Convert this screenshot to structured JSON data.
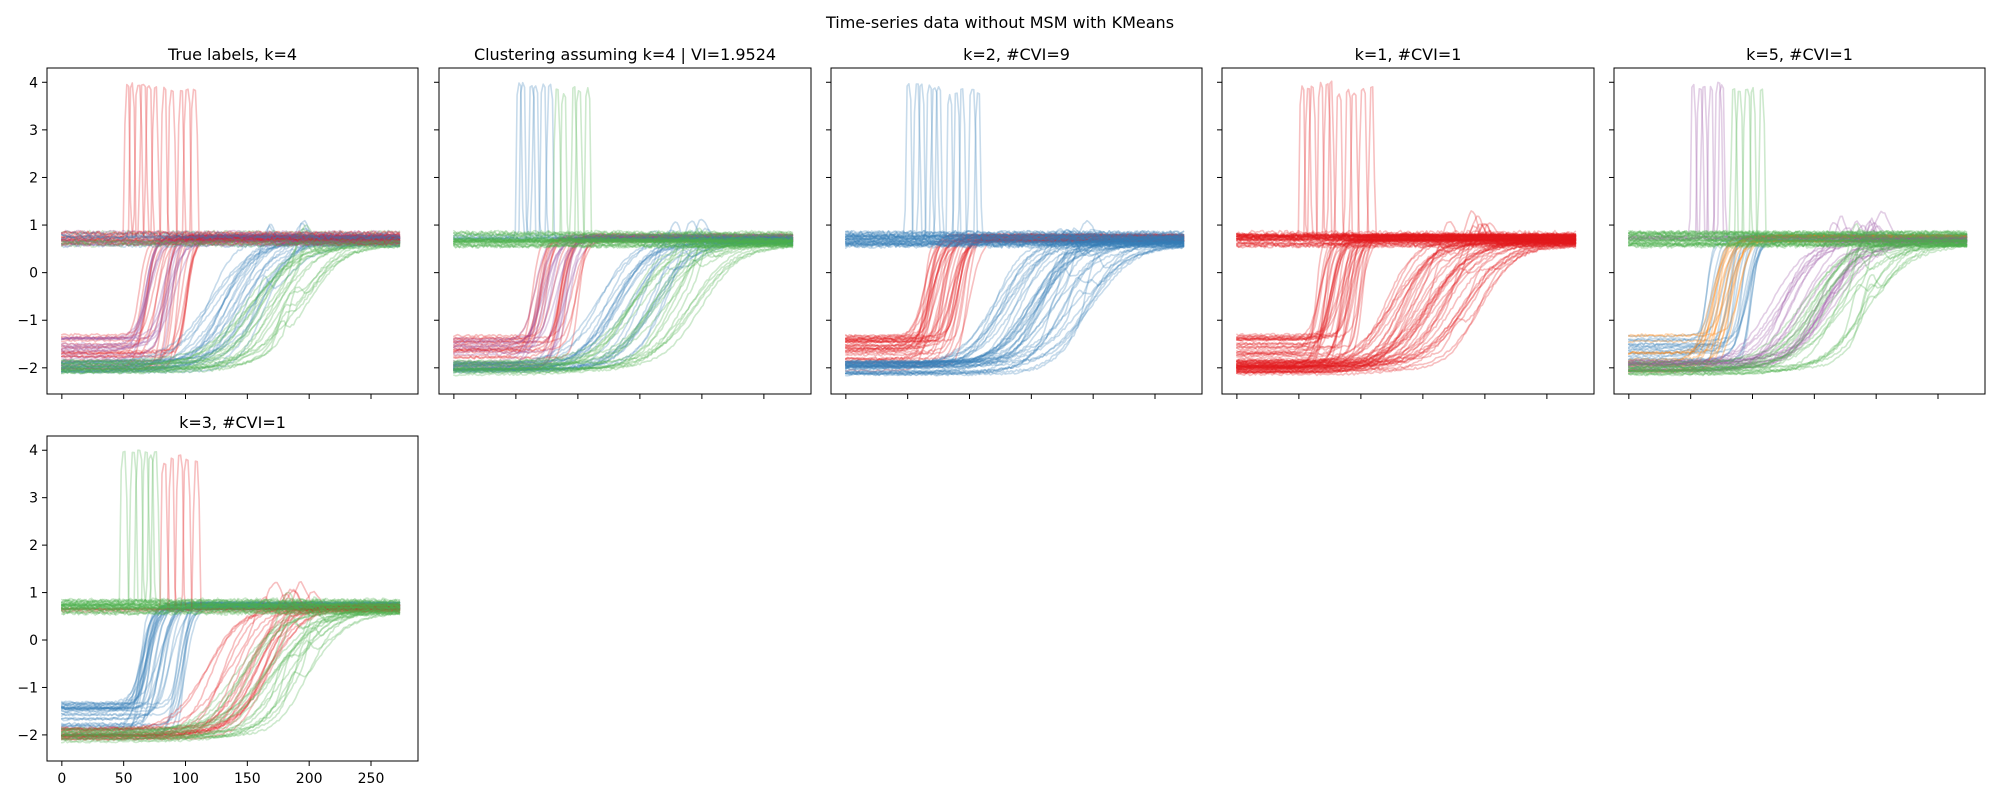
{
  "figure": {
    "suptitle": "Time-series data without MSM with KMeans"
  },
  "palette": {
    "red": "#e41a1c",
    "blue": "#377eb8",
    "green": "#4daf4a",
    "purple": "#984ea3",
    "orange": "#ff7f00"
  },
  "chart_data": [
    {
      "type": "line",
      "title": "True labels, k=4",
      "xlim": [
        -12,
        288
      ],
      "ylim": [
        -2.55,
        4.3
      ],
      "xticks": [
        0,
        50,
        100,
        150,
        200,
        250
      ],
      "yticks": [
        -2,
        -1,
        0,
        1,
        2,
        3,
        4
      ],
      "grid": false,
      "show_xticklabels": false,
      "show_yticklabels": true,
      "families": [
        "red",
        "purple",
        "blue",
        "green"
      ],
      "families_color": [
        "red",
        "purple",
        "blue",
        "green"
      ]
    },
    {
      "type": "line",
      "title": "Clustering assuming k=4 | VI=1.9524",
      "xlim": [
        -12,
        288
      ],
      "ylim": [
        -2.55,
        4.3
      ],
      "xticks": [
        0,
        50,
        100,
        150,
        200,
        250
      ],
      "yticks": [
        -2,
        -1,
        0,
        1,
        2,
        3,
        4
      ],
      "grid": false,
      "show_xticklabels": false,
      "show_yticklabels": false,
      "families": [
        "red",
        "purple",
        "blue",
        "green"
      ],
      "families_color": [
        "red",
        "purple",
        "blue",
        "green"
      ],
      "spike_colors": [
        "blue",
        "green"
      ],
      "flat_color": "green"
    },
    {
      "type": "line",
      "title": "k=2, #CVI=9",
      "xlim": [
        -12,
        288
      ],
      "ylim": [
        -2.55,
        4.3
      ],
      "xticks": [
        0,
        50,
        100,
        150,
        200,
        250
      ],
      "yticks": [
        -2,
        -1,
        0,
        1,
        2,
        3,
        4
      ],
      "grid": false,
      "show_xticklabels": false,
      "show_yticklabels": false,
      "families": [
        "red",
        "red",
        "blue",
        "blue"
      ],
      "families_color": [
        "red",
        "red",
        "blue",
        "blue"
      ],
      "spike_colors": [
        "blue",
        "blue"
      ],
      "flat_color": "blue"
    },
    {
      "type": "line",
      "title": "k=1, #CVI=1",
      "xlim": [
        -12,
        288
      ],
      "ylim": [
        -2.55,
        4.3
      ],
      "xticks": [
        0,
        50,
        100,
        150,
        200,
        250
      ],
      "yticks": [
        -2,
        -1,
        0,
        1,
        2,
        3,
        4
      ],
      "grid": false,
      "show_xticklabels": false,
      "show_yticklabels": false,
      "families": [
        "red",
        "red",
        "red",
        "red"
      ],
      "families_color": [
        "red",
        "red",
        "red",
        "red"
      ],
      "spike_colors": [
        "red",
        "red"
      ],
      "flat_color": "red"
    },
    {
      "type": "line",
      "title": "k=5, #CVI=1",
      "xlim": [
        -12,
        288
      ],
      "ylim": [
        -2.55,
        4.3
      ],
      "xticks": [
        0,
        50,
        100,
        150,
        200,
        250
      ],
      "yticks": [
        -2,
        -1,
        0,
        1,
        2,
        3,
        4
      ],
      "grid": false,
      "show_xticklabels": false,
      "show_yticklabels": false,
      "families": [
        "blue",
        "orange",
        "purple",
        "green"
      ],
      "families_color": [
        "blue",
        "orange",
        "purple",
        "green"
      ],
      "spike_colors": [
        "purple",
        "green"
      ],
      "flat_color": "green"
    },
    {
      "type": "line",
      "title": "k=3, #CVI=1",
      "xlim": [
        -12,
        288
      ],
      "ylim": [
        -2.55,
        4.3
      ],
      "xticks": [
        0,
        50,
        100,
        150,
        200,
        250
      ],
      "yticks": [
        -2,
        -1,
        0,
        1,
        2,
        3,
        4
      ],
      "grid": false,
      "show_xticklabels": true,
      "show_yticklabels": true,
      "families": [
        "blue",
        "blue",
        "red",
        "green"
      ],
      "families_color": [
        "blue",
        "blue",
        "red",
        "green"
      ],
      "spike_colors": [
        "green",
        "red"
      ],
      "flat_color": "green"
    }
  ]
}
